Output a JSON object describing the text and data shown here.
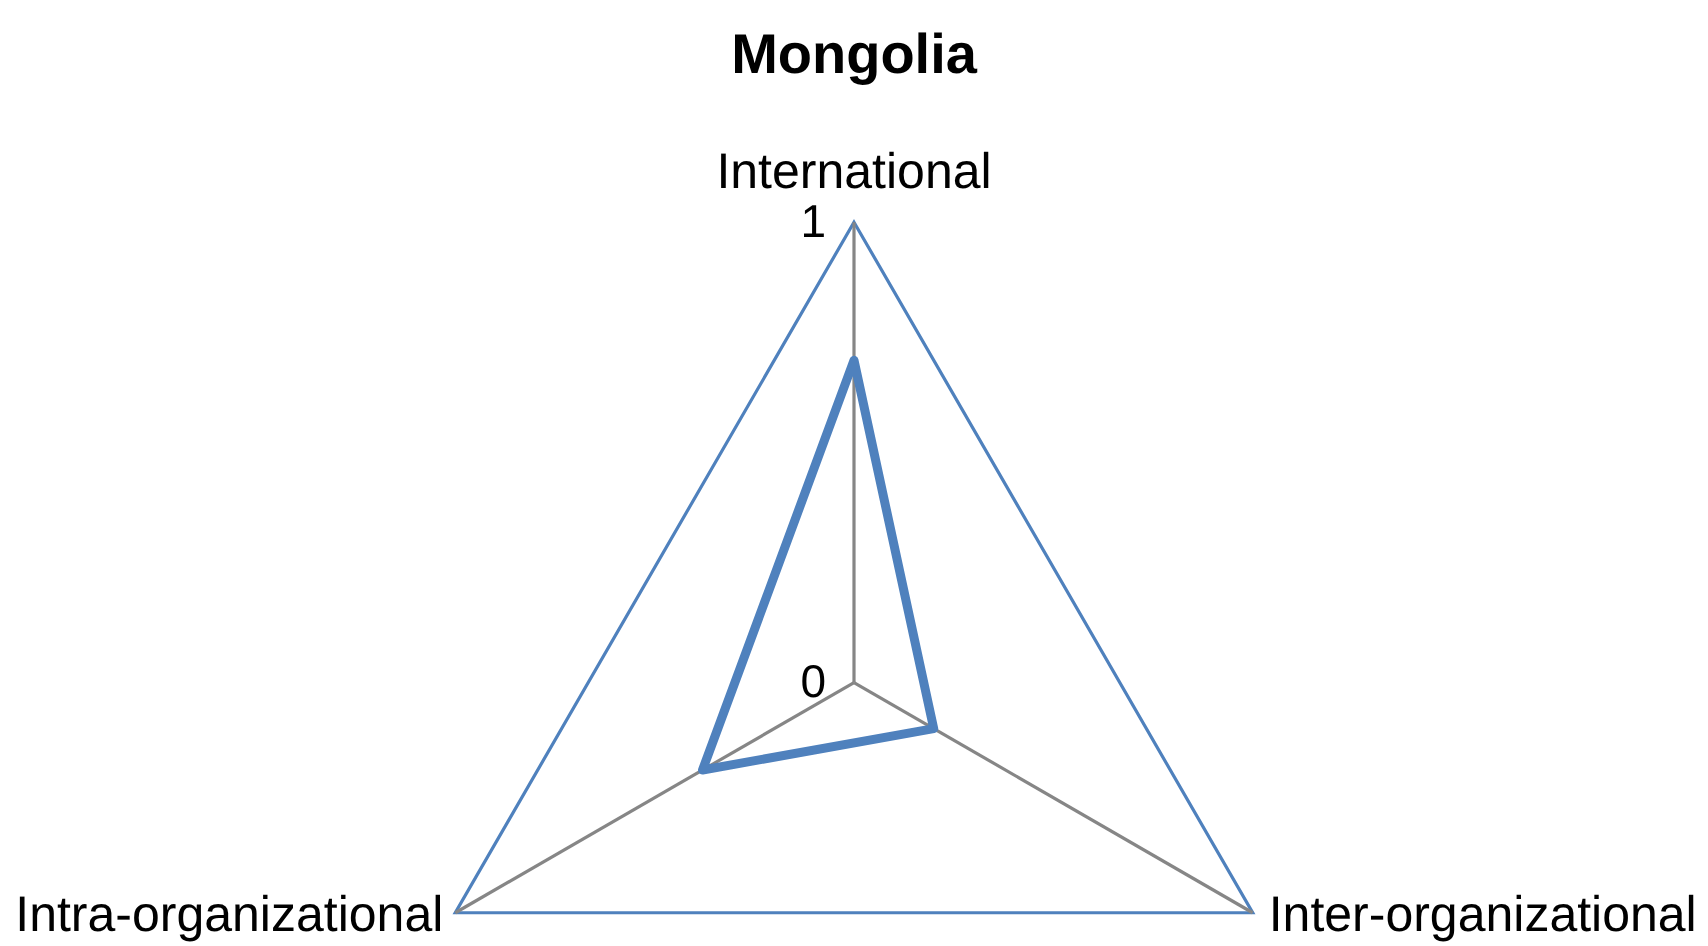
{
  "chart_data": {
    "type": "radar",
    "title": "Mongolia",
    "categories": [
      "International",
      "Inter-organizational",
      "Intra-organizational"
    ],
    "series": [
      {
        "color": "#4f81bd",
        "values": [
          0.7,
          0.2,
          0.38
        ]
      }
    ],
    "ylim": [
      0,
      1
    ],
    "yticks": [
      0,
      1
    ],
    "grid": true,
    "legend": false,
    "marker": "none"
  }
}
